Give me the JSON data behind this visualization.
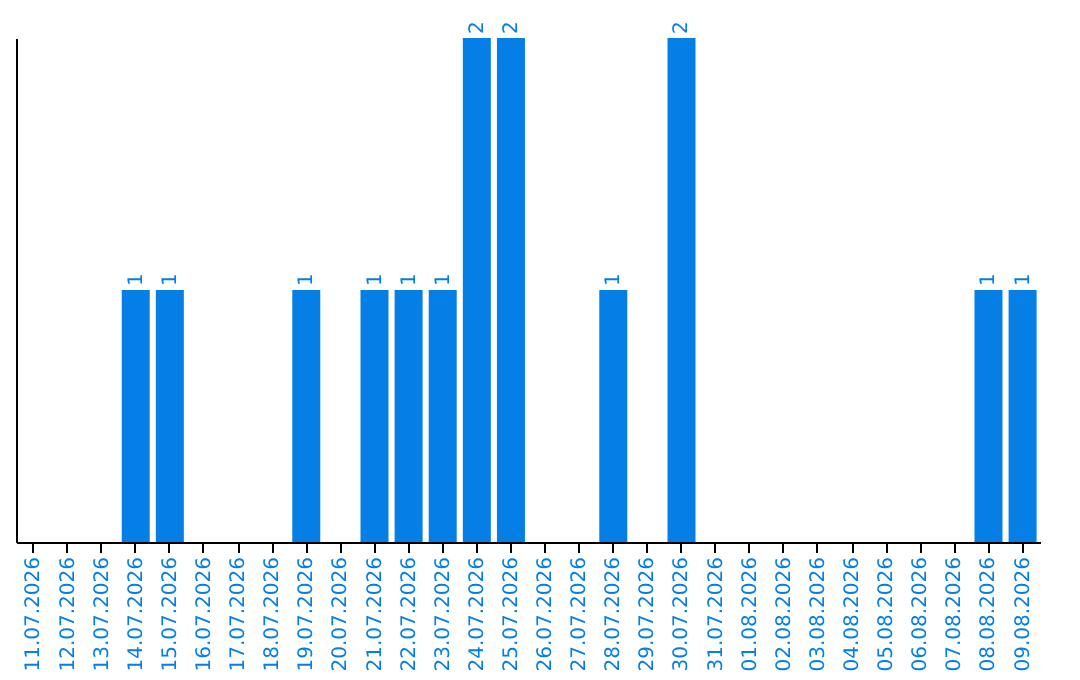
{
  "chart_data": {
    "type": "bar",
    "categories": [
      "11.07.2026",
      "12.07.2026",
      "13.07.2026",
      "14.07.2026",
      "15.07.2026",
      "16.07.2026",
      "17.07.2026",
      "18.07.2026",
      "19.07.2026",
      "20.07.2026",
      "21.07.2026",
      "22.07.2026",
      "23.07.2026",
      "24.07.2026",
      "25.07.2026",
      "26.07.2026",
      "27.07.2026",
      "28.07.2026",
      "29.07.2026",
      "30.07.2026",
      "31.07.2026",
      "01.08.2026",
      "02.08.2026",
      "03.08.2026",
      "04.08.2026",
      "05.08.2026",
      "06.08.2026",
      "07.08.2026",
      "08.08.2026",
      "09.08.2026"
    ],
    "values": [
      0,
      0,
      0,
      1,
      1,
      0,
      0,
      0,
      1,
      0,
      1,
      1,
      1,
      2,
      2,
      0,
      0,
      1,
      0,
      2,
      0,
      0,
      0,
      0,
      0,
      0,
      0,
      0,
      1,
      1
    ],
    "value_labels": [
      null,
      null,
      null,
      "1",
      "1",
      null,
      null,
      null,
      "1",
      null,
      "1",
      "1",
      "1",
      "2",
      "2",
      null,
      null,
      "1",
      null,
      "2",
      null,
      null,
      null,
      null,
      null,
      null,
      null,
      null,
      "1",
      "1"
    ],
    "color": "#057fe6",
    "ylim": [
      0,
      2
    ],
    "tick_labels": "x",
    "grid": false
  }
}
